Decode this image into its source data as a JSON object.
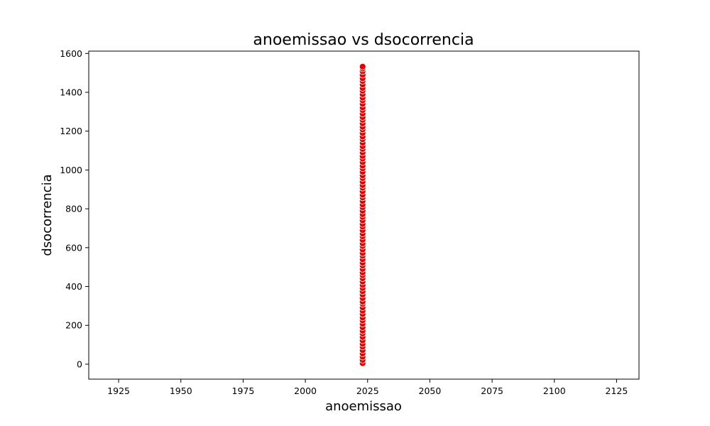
{
  "chart_data": {
    "type": "scatter",
    "title": "anoemissao vs dsocorrencia",
    "xlabel": "anoemissao",
    "ylabel": "dsocorrencia",
    "xlim": [
      1913,
      2134
    ],
    "ylim": [
      -77,
      1612
    ],
    "xticks": [
      1925,
      1950,
      1975,
      2000,
      2025,
      2050,
      2075,
      2100,
      2125
    ],
    "yticks": [
      0,
      200,
      400,
      600,
      800,
      1000,
      1200,
      1400,
      1600
    ],
    "grid": false,
    "legend": "none",
    "marker_color": "#e00000",
    "marker_edge_color": "#ffffff",
    "x": 2023,
    "y_values": [
      5,
      22,
      38,
      55,
      72,
      90,
      105,
      122,
      140,
      158,
      172,
      190,
      208,
      225,
      240,
      258,
      275,
      292,
      310,
      322,
      340,
      358,
      375,
      392,
      408,
      425,
      442,
      458,
      472,
      490,
      508,
      522,
      540,
      558,
      572,
      590,
      608,
      622,
      640,
      658,
      672,
      690,
      708,
      722,
      740,
      758,
      772,
      790,
      808,
      822,
      840,
      858,
      872,
      890,
      908,
      922,
      940,
      958,
      972,
      990,
      1008,
      1022,
      1040,
      1058,
      1072,
      1090,
      1108,
      1122,
      1140,
      1158,
      1172,
      1190,
      1208,
      1222,
      1240,
      1258,
      1272,
      1290,
      1308,
      1322,
      1340,
      1358,
      1372,
      1390,
      1408,
      1422,
      1440,
      1458,
      1472,
      1490,
      1508,
      1522,
      1532
    ]
  }
}
